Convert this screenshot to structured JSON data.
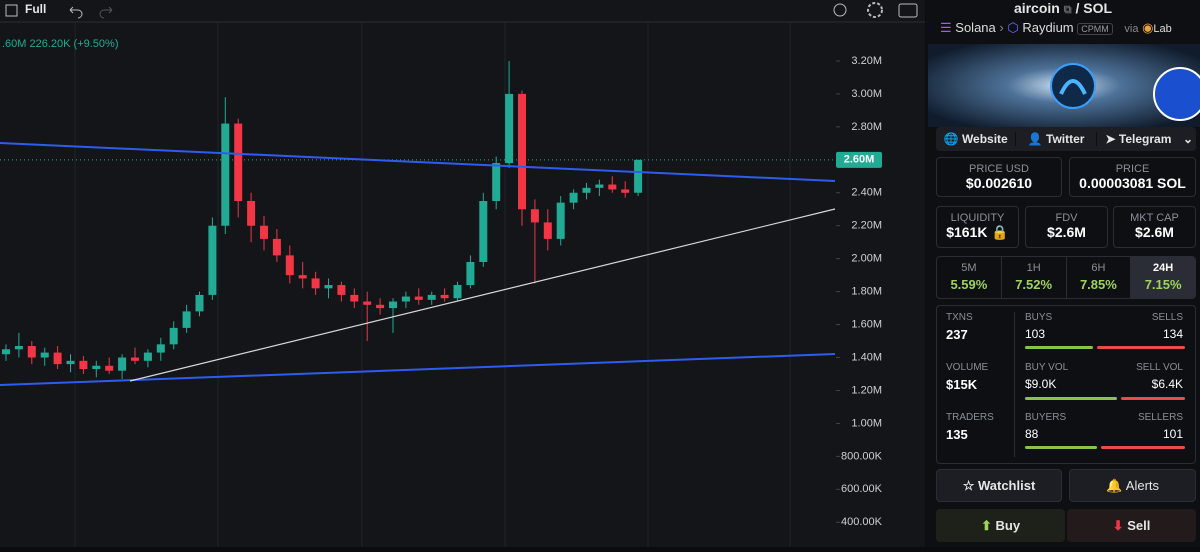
{
  "toolbar": {
    "mode": "Full",
    "legend": ".60M  226.20K (+9.50%)"
  },
  "chart": {
    "type": "candlestick",
    "ylim": [
      250000,
      3570000
    ],
    "yticks": [
      {
        "value": 3200000,
        "label": "3.20M"
      },
      {
        "value": 3000000,
        "label": "3.00M"
      },
      {
        "value": 2800000,
        "label": "2.80M"
      },
      {
        "value": 2400000,
        "label": "2.40M"
      },
      {
        "value": 2200000,
        "label": "2.20M"
      },
      {
        "value": 2000000,
        "label": "2.00M"
      },
      {
        "value": 1800000,
        "label": "1.80M"
      },
      {
        "value": 1600000,
        "label": "1.60M"
      },
      {
        "value": 1400000,
        "label": "1.40M"
      },
      {
        "value": 1200000,
        "label": "1.20M"
      },
      {
        "value": 1000000,
        "label": "1.00M"
      },
      {
        "value": 800000,
        "label": "800.00K"
      },
      {
        "value": 600000,
        "label": "600.00K"
      },
      {
        "value": 400000,
        "label": "400.00K"
      }
    ],
    "last_price": {
      "value": 2600000,
      "label": "2.60M"
    },
    "up_color": "#22ab94",
    "down_color": "#f23645",
    "candles": [
      [
        1420000,
        1480000,
        1380000,
        1450000
      ],
      [
        1450000,
        1550000,
        1400000,
        1470000
      ],
      [
        1470000,
        1500000,
        1360000,
        1400000
      ],
      [
        1400000,
        1460000,
        1350000,
        1430000
      ],
      [
        1430000,
        1470000,
        1330000,
        1360000
      ],
      [
        1360000,
        1420000,
        1310000,
        1380000
      ],
      [
        1380000,
        1410000,
        1300000,
        1330000
      ],
      [
        1330000,
        1380000,
        1280000,
        1350000
      ],
      [
        1350000,
        1400000,
        1300000,
        1320000
      ],
      [
        1320000,
        1420000,
        1270000,
        1400000
      ],
      [
        1400000,
        1460000,
        1360000,
        1380000
      ],
      [
        1380000,
        1450000,
        1340000,
        1430000
      ],
      [
        1430000,
        1520000,
        1380000,
        1480000
      ],
      [
        1480000,
        1620000,
        1450000,
        1580000
      ],
      [
        1580000,
        1720000,
        1550000,
        1680000
      ],
      [
        1680000,
        1800000,
        1650000,
        1780000
      ],
      [
        1780000,
        2250000,
        1750000,
        2200000
      ],
      [
        2200000,
        2980000,
        2150000,
        2820000
      ],
      [
        2820000,
        2850000,
        2250000,
        2350000
      ],
      [
        2350000,
        2400000,
        2100000,
        2200000
      ],
      [
        2200000,
        2260000,
        2050000,
        2120000
      ],
      [
        2120000,
        2180000,
        1980000,
        2020000
      ],
      [
        2020000,
        2080000,
        1850000,
        1900000
      ],
      [
        1900000,
        1980000,
        1820000,
        1880000
      ],
      [
        1880000,
        1920000,
        1780000,
        1820000
      ],
      [
        1820000,
        1880000,
        1760000,
        1840000
      ],
      [
        1840000,
        1860000,
        1740000,
        1780000
      ],
      [
        1780000,
        1820000,
        1700000,
        1740000
      ],
      [
        1740000,
        1800000,
        1500000,
        1720000
      ],
      [
        1720000,
        1760000,
        1660000,
        1700000
      ],
      [
        1700000,
        1760000,
        1550000,
        1740000
      ],
      [
        1740000,
        1800000,
        1700000,
        1770000
      ],
      [
        1770000,
        1820000,
        1720000,
        1750000
      ],
      [
        1750000,
        1800000,
        1720000,
        1780000
      ],
      [
        1780000,
        1820000,
        1740000,
        1760000
      ],
      [
        1760000,
        1860000,
        1740000,
        1840000
      ],
      [
        1840000,
        2020000,
        1820000,
        1980000
      ],
      [
        1980000,
        2400000,
        1950000,
        2350000
      ],
      [
        2350000,
        2620000,
        2300000,
        2580000
      ],
      [
        2580000,
        3200000,
        2550000,
        3000000
      ],
      [
        3000000,
        3020000,
        2200000,
        2300000
      ],
      [
        2300000,
        2360000,
        1850000,
        2220000
      ],
      [
        2220000,
        2300000,
        2050000,
        2120000
      ],
      [
        2120000,
        2380000,
        2080000,
        2340000
      ],
      [
        2340000,
        2420000,
        2300000,
        2400000
      ],
      [
        2400000,
        2460000,
        2360000,
        2430000
      ],
      [
        2430000,
        2480000,
        2380000,
        2450000
      ],
      [
        2450000,
        2500000,
        2400000,
        2420000
      ],
      [
        2420000,
        2470000,
        2370000,
        2400000
      ],
      [
        2400000,
        2600000,
        2380000,
        2600000
      ]
    ]
  },
  "header": {
    "token": "aircoin",
    "sep": "/",
    "quote": "SOL",
    "chain": "Solana",
    "dex": "Raydium",
    "pool": "CPMM",
    "via": "via",
    "launchpad": "Lab"
  },
  "links": [
    "Website",
    "Twitter",
    "Telegram"
  ],
  "prices": [
    {
      "label": "PRICE USD",
      "value": "$0.002610"
    },
    {
      "label": "PRICE",
      "value": "0.00003081 SOL"
    }
  ],
  "metrics": [
    {
      "label": "LIQUIDITY",
      "value": "$161K"
    },
    {
      "label": "FDV",
      "value": "$2.6M"
    },
    {
      "label": "MKT CAP",
      "value": "$2.6M"
    }
  ],
  "timeframes": [
    {
      "label": "5M",
      "change": "5.59%"
    },
    {
      "label": "1H",
      "change": "7.52%"
    },
    {
      "label": "6H",
      "change": "7.85%"
    },
    {
      "label": "24H",
      "change": "7.15%"
    }
  ],
  "stats": {
    "txns_label": "TXNS",
    "txns": 237,
    "buys_label": "BUYS",
    "buys": 103,
    "sells_label": "SELLS",
    "sells": 134,
    "volume_label": "VOLUME",
    "volume": "$15K",
    "buy_vol_label": "BUY VOL",
    "buy_vol": {
      "value": 9000,
      "label": "$9.0K"
    },
    "sell_vol_label": "SELL VOL",
    "sell_vol": {
      "value": 6400,
      "label": "$6.4K"
    },
    "traders_label": "TRADERS",
    "traders": 135,
    "buyers_label": "BUYERS",
    "buyers": 88,
    "sellers_label": "SELLERS",
    "sellers": 101
  },
  "actions": {
    "watchlist": "Watchlist",
    "alerts": "Alerts",
    "buy": "Buy",
    "sell": "Sell"
  }
}
